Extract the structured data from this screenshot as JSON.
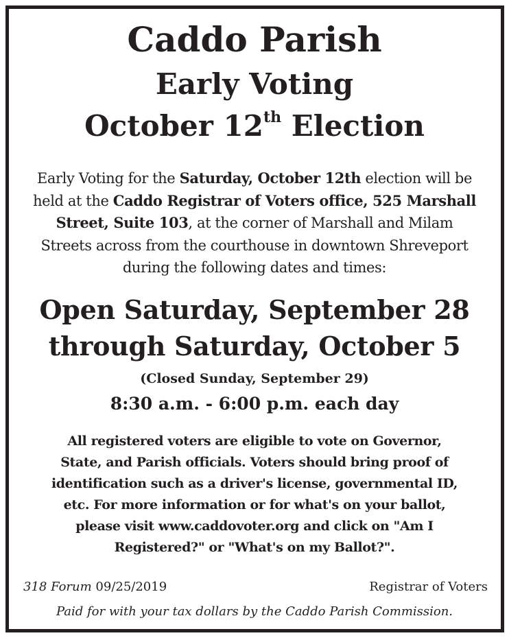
{
  "title": {
    "line1": "Caddo Parish",
    "line2": "Early Voting",
    "line3_pre": "October 12",
    "line3_sup": "th",
    "line3_post": " Election"
  },
  "intro": {
    "l1a": "Early Voting for the ",
    "l1b": "Saturday, October 12th",
    "l1c": " election will be",
    "l2a": "held at the ",
    "l2b": "Caddo Registrar of Voters office, 525 Marshall",
    "l3a": "Street, Suite 103",
    "l3b": ", at the corner of Marshall and Milam",
    "l4": "Streets across from the courthouse in downtown Shreveport",
    "l5": "during the following dates and times:"
  },
  "schedule": {
    "open_line1": "Open Saturday, September 28",
    "open_line2": "through Saturday, October 5",
    "closed": "(Closed Sunday, September 29)",
    "hours": "8:30 a.m. - 6:00 p.m. each day"
  },
  "info": {
    "lines": [
      "All registered voters are eligible to vote on Governor,",
      "State, and Parish officials. Voters should bring proof of",
      "identification such as a driver's license, governmental ID,",
      "etc. For more information or for what's on your ballot,",
      "please visit www.caddovoter.org and click on \"Am I",
      "Registered?\" or \"What's on my Ballot?\"."
    ]
  },
  "footer": {
    "publication": "318 Forum",
    "date": " 09/25/2019",
    "sponsor": "Registrar of Voters",
    "paid_for": "Paid for with your tax dollars by the Caddo Parish Commission."
  }
}
